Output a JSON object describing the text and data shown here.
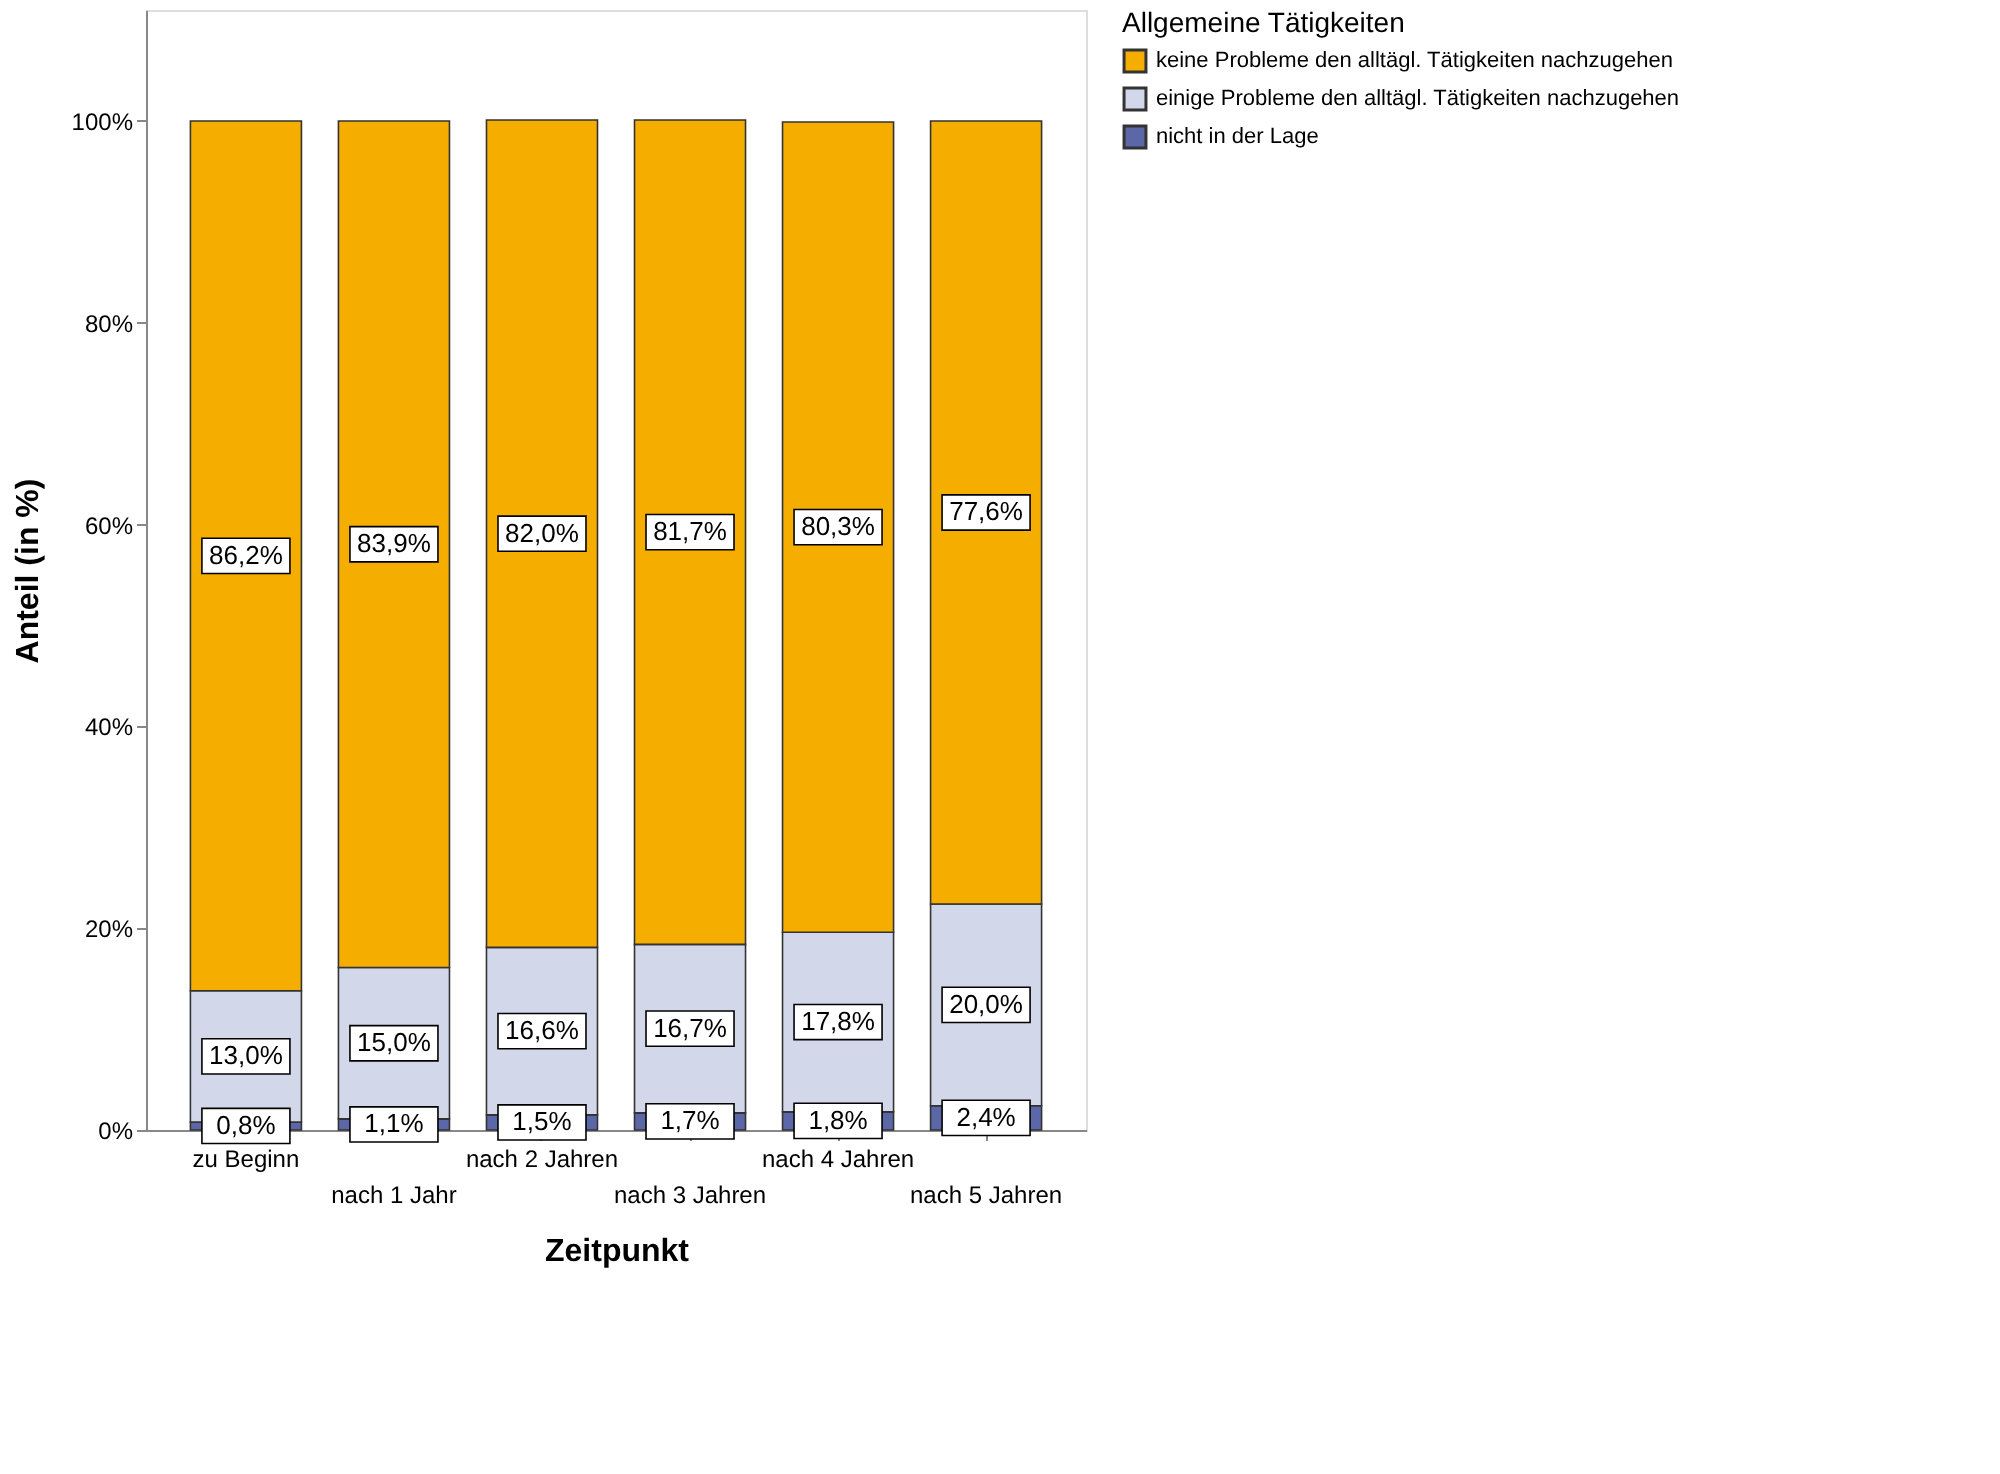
{
  "chart_data": {
    "type": "bar",
    "stacked": true,
    "xlabel": "Zeitpunkt",
    "ylabel": "Anteil (in %)",
    "legend_title": "Allgemeine Tätigkeiten",
    "legend": "top right",
    "grid": false,
    "categories": [
      "zu Beginn",
      "nach 1 Jahr",
      "nach 2 Jahren",
      "nach 3 Jahren",
      "nach 4 Jahren",
      "nach 5 Jahren"
    ],
    "ylim": [
      0,
      111
    ],
    "yticks": [
      {
        "value": 0,
        "label": "0%"
      },
      {
        "value": 20,
        "label": "20%"
      },
      {
        "value": 40,
        "label": "40%"
      },
      {
        "value": 60,
        "label": "60%"
      },
      {
        "value": 80,
        "label": "80%"
      },
      {
        "value": 100,
        "label": "100%"
      }
    ],
    "series": [
      {
        "name": "nicht in der Lage",
        "color": "#5b67a6",
        "values": [
          0.8,
          1.1,
          1.5,
          1.7,
          1.8,
          2.4
        ],
        "value_labels": [
          "0,8%",
          "1,1%",
          "1,5%",
          "1,7%",
          "1,8%",
          "2,4%"
        ]
      },
      {
        "name": "einige Probleme den alltägl. Tätigkeiten nachzugehen",
        "color": "#d2d7ea",
        "values": [
          13.0,
          15.0,
          16.6,
          16.7,
          17.8,
          20.0
        ],
        "value_labels": [
          "13,0%",
          "15,0%",
          "16,6%",
          "16,7%",
          "17,8%",
          "20,0%"
        ]
      },
      {
        "name": "keine Probleme den alltägl. Tätigkeiten nachzugehen",
        "color": "#f5ad00",
        "values": [
          86.2,
          83.9,
          82.0,
          81.7,
          80.3,
          77.6
        ],
        "value_labels": [
          "86,2%",
          "83,9%",
          "82,0%",
          "81,7%",
          "80,3%",
          "77,6%"
        ]
      }
    ]
  }
}
